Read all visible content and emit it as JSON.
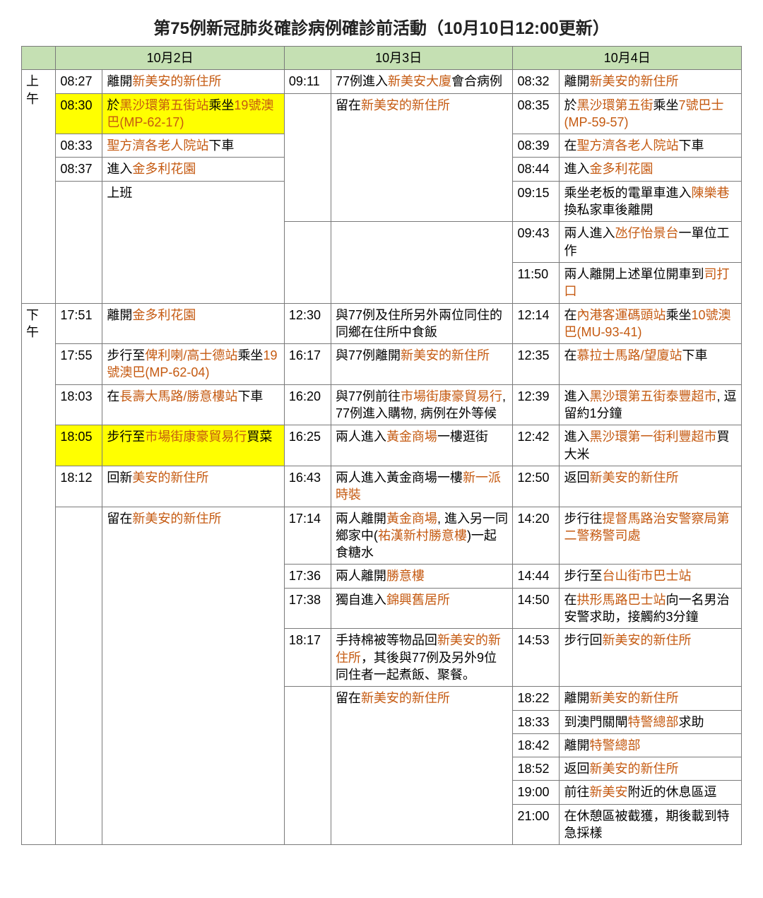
{
  "title": "第75例新冠肺炎確診病例確診前活動（10月10日12:00更新）",
  "colors": {
    "header_bg": "#c5e0b3",
    "highlight_bg": "#ffff00",
    "loc_color": "#c55a11",
    "border": "#7a7a7a"
  },
  "columns": [
    "10月2日",
    "10月3日",
    "10月4日"
  ],
  "periods": {
    "am": "上午",
    "pm": "下午"
  },
  "rows_am": [
    {
      "d1": {
        "time": "08:27",
        "segs": [
          {
            "t": "離開"
          },
          {
            "t": "新美安的新住所",
            "loc": true
          }
        ]
      },
      "d2": {
        "time": "09:11",
        "segs": [
          {
            "t": "77例進入"
          },
          {
            "t": "新美安大廈",
            "loc": true
          },
          {
            "t": "會合病例"
          }
        ]
      },
      "d3": {
        "time": "08:32",
        "segs": [
          {
            "t": "離開"
          },
          {
            "t": "新美安的新住所",
            "loc": true
          }
        ]
      }
    },
    {
      "d1": {
        "time": "08:30",
        "hl": true,
        "segs": [
          {
            "t": "於"
          },
          {
            "t": "黑沙環第五街站",
            "loc": true
          },
          {
            "t": "乘坐"
          },
          {
            "t": "19號澳巴(MP-62-17)",
            "loc": true
          }
        ]
      },
      "d2": {
        "time": "",
        "segs": [
          {
            "t": "留在"
          },
          {
            "t": "新美安的新住所",
            "loc": true
          }
        ],
        "rowspan": 4
      },
      "d3": {
        "time": "08:35",
        "segs": [
          {
            "t": "於"
          },
          {
            "t": "黑沙環第五街",
            "loc": true
          },
          {
            "t": "乘坐"
          },
          {
            "t": "7號巴士(MP-59-57)",
            "loc": true
          }
        ]
      }
    },
    {
      "d1": {
        "time": "08:33",
        "segs": [
          {
            "t": "聖方濟各老人院站",
            "loc": true
          },
          {
            "t": "下車"
          }
        ]
      },
      "d3": {
        "time": "08:39",
        "segs": [
          {
            "t": "在"
          },
          {
            "t": "聖方濟各老人院站",
            "loc": true
          },
          {
            "t": "下車"
          }
        ]
      }
    },
    {
      "d1": {
        "time": "08:37",
        "segs": [
          {
            "t": "進入"
          },
          {
            "t": "金多利花園",
            "loc": true
          }
        ]
      },
      "d3": {
        "time": "08:44",
        "segs": [
          {
            "t": "進入"
          },
          {
            "t": "金多利花園",
            "loc": true
          }
        ]
      }
    },
    {
      "d1": {
        "time": "",
        "segs": [
          {
            "t": "上班"
          }
        ],
        "rowspan": 3
      },
      "d3": {
        "time": "09:15",
        "segs": [
          {
            "t": "乘坐老板的電單車進入"
          },
          {
            "t": "陳樂巷",
            "loc": true
          },
          {
            "t": "換私家車後離開"
          }
        ]
      }
    },
    {
      "d2": {
        "skip": true,
        "rowspan": 2
      },
      "d3": {
        "time": "09:43",
        "segs": [
          {
            "t": "兩人進入"
          },
          {
            "t": "氹仔怡景台",
            "loc": true
          },
          {
            "t": "一單位工作"
          }
        ]
      }
    },
    {
      "d3": {
        "time": "11:50",
        "segs": [
          {
            "t": "兩人離開上述單位開車到"
          },
          {
            "t": "司打口",
            "loc": true
          }
        ]
      }
    }
  ],
  "rows_pm": [
    {
      "d1": {
        "time": "17:51",
        "segs": [
          {
            "t": "離開"
          },
          {
            "t": "金多利花園",
            "loc": true
          }
        ]
      },
      "d2": {
        "time": "12:30",
        "segs": [
          {
            "t": "與77例及住所另外兩位同住的同鄉在住所中食飯"
          }
        ]
      },
      "d3": {
        "time": "12:14",
        "segs": [
          {
            "t": "在"
          },
          {
            "t": "內港客運碼頭站",
            "loc": true
          },
          {
            "t": "乘坐"
          },
          {
            "t": "10號澳巴(MU-93-41)",
            "loc": true
          }
        ]
      }
    },
    {
      "d1": {
        "time": "17:55",
        "segs": [
          {
            "t": "步行至"
          },
          {
            "t": "俾利喇/高士德站",
            "loc": true
          },
          {
            "t": "乘坐"
          },
          {
            "t": "19號澳巴(MP-62-04)",
            "loc": true
          }
        ]
      },
      "d2": {
        "time": "16:17",
        "segs": [
          {
            "t": "與77例離開"
          },
          {
            "t": "新美安的新住所",
            "loc": true
          }
        ]
      },
      "d3": {
        "time": "12:35",
        "segs": [
          {
            "t": "在"
          },
          {
            "t": "慕拉士馬路/望廈站",
            "loc": true
          },
          {
            "t": "下車"
          }
        ]
      }
    },
    {
      "d1": {
        "time": "18:03",
        "segs": [
          {
            "t": "在"
          },
          {
            "t": "長壽大馬路/勝意樓站",
            "loc": true
          },
          {
            "t": "下車"
          }
        ]
      },
      "d2": {
        "time": "16:20",
        "segs": [
          {
            "t": "與77例前往"
          },
          {
            "t": "市場街康豪貿易行",
            "loc": true
          },
          {
            "t": ", 77例進入購物, 病例在外等候"
          }
        ]
      },
      "d3": {
        "time": "12:39",
        "segs": [
          {
            "t": "進入"
          },
          {
            "t": "黑沙環第五街泰豐超市",
            "loc": true
          },
          {
            "t": ", 逗留約1分鐘"
          }
        ]
      }
    },
    {
      "d1": {
        "time": "18:05",
        "hl": true,
        "segs": [
          {
            "t": "步行至"
          },
          {
            "t": "市場街康豪貿易行",
            "loc": true
          },
          {
            "t": "買菜"
          }
        ]
      },
      "d2": {
        "time": "16:25",
        "segs": [
          {
            "t": "兩人進入"
          },
          {
            "t": "黃金商場",
            "loc": true
          },
          {
            "t": "一樓逛街"
          }
        ]
      },
      "d3": {
        "time": "12:42",
        "segs": [
          {
            "t": "進入"
          },
          {
            "t": "黑沙環第一街利豐超市",
            "loc": true
          },
          {
            "t": "買大米"
          }
        ]
      }
    },
    {
      "d1": {
        "time": "18:12",
        "segs": [
          {
            "t": "回新"
          },
          {
            "t": "美安的新住所",
            "loc": true
          }
        ]
      },
      "d2": {
        "time": "16:43",
        "segs": [
          {
            "t": "兩人進入黃金商場一樓"
          },
          {
            "t": "新一派時裝",
            "loc": true
          }
        ]
      },
      "d3": {
        "time": "12:50",
        "segs": [
          {
            "t": "返回"
          },
          {
            "t": "新美安的新住所",
            "loc": true
          }
        ]
      }
    },
    {
      "d1": {
        "time": "",
        "segs": [
          {
            "t": "留在"
          },
          {
            "t": "新美安的新住所",
            "loc": true
          }
        ],
        "rowspan": 11
      },
      "d2": {
        "time": "17:14",
        "segs": [
          {
            "t": "兩人離開"
          },
          {
            "t": "黃金商場",
            "loc": true
          },
          {
            "t": ", 進入另一同鄉家中("
          },
          {
            "t": "祐漢新村勝意樓",
            "loc": true
          },
          {
            "t": ")一起食糖水"
          }
        ]
      },
      "d3": {
        "time": "14:20",
        "segs": [
          {
            "t": "步行往"
          },
          {
            "t": "提督馬路治安警察局第二警務警司處",
            "loc": true
          }
        ]
      }
    },
    {
      "d2": {
        "time": "17:36",
        "segs": [
          {
            "t": "兩人離開"
          },
          {
            "t": "勝意樓",
            "loc": true
          }
        ]
      },
      "d3": {
        "time": "14:44",
        "segs": [
          {
            "t": "步行至"
          },
          {
            "t": "台山街市巴士站",
            "loc": true
          }
        ]
      }
    },
    {
      "d2": {
        "time": "17:38",
        "segs": [
          {
            "t": "獨自進入"
          },
          {
            "t": "錦興舊居所",
            "loc": true
          }
        ]
      },
      "d3": {
        "time": "14:50",
        "segs": [
          {
            "t": "在"
          },
          {
            "t": "拱形馬路巴士站",
            "loc": true
          },
          {
            "t": "向一名男治安警求助，接觸約3分鐘"
          }
        ]
      }
    },
    {
      "d2": {
        "time": "18:17",
        "segs": [
          {
            "t": "手持棉被等物品回"
          },
          {
            "t": "新美安的新住所",
            "loc": true
          },
          {
            "t": "，其後與77例及另外9位同住者一起煮飯、聚餐。"
          }
        ]
      },
      "d3": {
        "time": "14:53",
        "segs": [
          {
            "t": "步行回"
          },
          {
            "t": "新美安的新住所",
            "loc": true
          }
        ]
      }
    },
    {
      "d2": {
        "time": "",
        "segs": [
          {
            "t": "留在"
          },
          {
            "t": "新美安的新住所",
            "loc": true
          }
        ],
        "rowspan": 7
      },
      "d3": {
        "time": "18:22",
        "segs": [
          {
            "t": "離開"
          },
          {
            "t": "新美安的新住所",
            "loc": true
          }
        ]
      }
    },
    {
      "d3": {
        "time": "18:33",
        "segs": [
          {
            "t": "到澳門關閘"
          },
          {
            "t": "特警總部",
            "loc": true
          },
          {
            "t": "求助"
          }
        ]
      }
    },
    {
      "d3": {
        "time": "18:42",
        "segs": [
          {
            "t": "離開"
          },
          {
            "t": "特警總部",
            "loc": true
          }
        ]
      }
    },
    {
      "d3": {
        "time": "18:52",
        "segs": [
          {
            "t": "返回"
          },
          {
            "t": "新美安的新住所",
            "loc": true
          }
        ]
      }
    },
    {
      "d3": {
        "time": "19:00",
        "segs": [
          {
            "t": "前往"
          },
          {
            "t": "新美安",
            "loc": true
          },
          {
            "t": "附近的休息區逗"
          }
        ]
      }
    },
    {
      "d3": {
        "time": "21:00",
        "segs": [
          {
            "t": "在休憩區被截獲，期後載到特急採樣"
          }
        ]
      }
    }
  ]
}
